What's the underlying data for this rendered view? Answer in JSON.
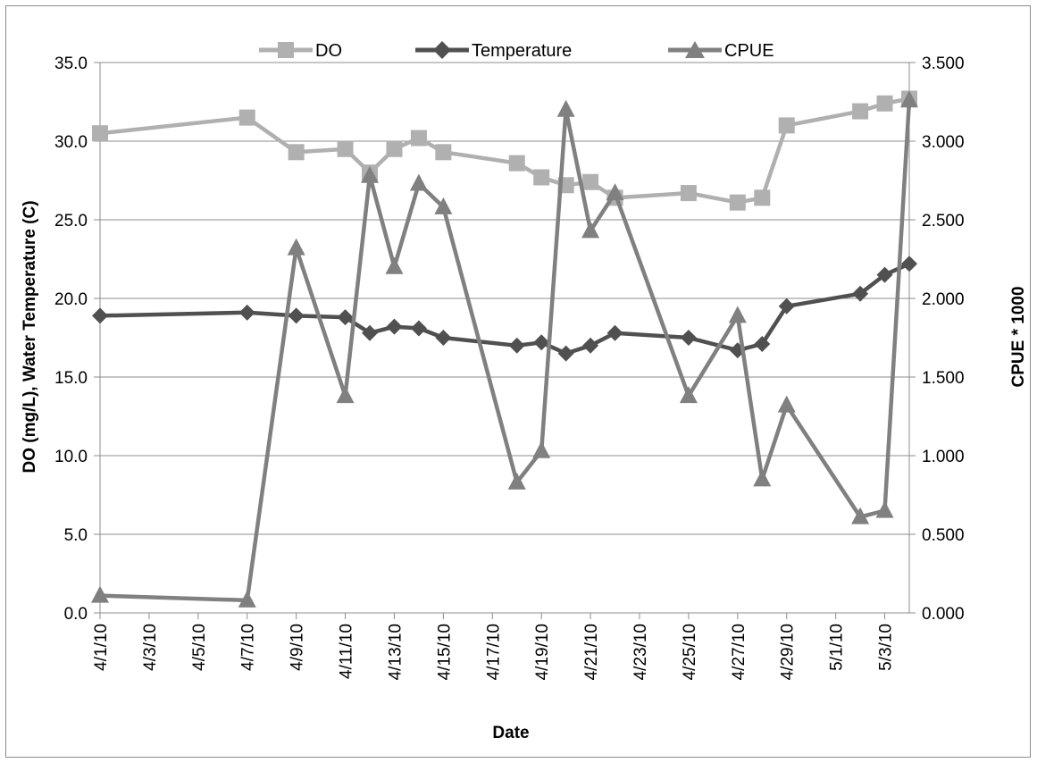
{
  "chart_data": {
    "type": "line",
    "title": "",
    "xlabel": "Date",
    "ylabel_left": "DO (mg/L), Water Temperature (C)",
    "ylabel_right": "CPUE * 1000",
    "x_ticks": [
      "4/1/10",
      "4/3/10",
      "4/5/10",
      "4/7/10",
      "4/9/10",
      "4/11/10",
      "4/13/10",
      "4/15/10",
      "4/17/10",
      "4/19/10",
      "4/21/10",
      "4/23/10",
      "4/25/10",
      "4/27/10",
      "4/29/10",
      "5/1/10",
      "5/3/10"
    ],
    "y_left_ticks": [
      "0.0",
      "5.0",
      "10.0",
      "15.0",
      "20.0",
      "25.0",
      "30.0",
      "35.0"
    ],
    "y_right_ticks": [
      "0.000",
      "0.500",
      "1.000",
      "1.500",
      "2.000",
      "2.500",
      "3.000",
      "3.500"
    ],
    "ylim_left": [
      0,
      35
    ],
    "ylim_right": [
      0,
      3.5
    ],
    "xlim": [
      "2010-04-01",
      "2010-05-04"
    ],
    "grid": "horizontal",
    "legend_position": "top",
    "series": [
      {
        "name": "DO",
        "axis": "left",
        "marker": "square",
        "color": "#b0b0b0",
        "x": [
          "2010-04-01",
          "2010-04-07",
          "2010-04-09",
          "2010-04-11",
          "2010-04-12",
          "2010-04-13",
          "2010-04-14",
          "2010-04-15",
          "2010-04-18",
          "2010-04-19",
          "2010-04-20",
          "2010-04-21",
          "2010-04-22",
          "2010-04-25",
          "2010-04-27",
          "2010-04-28",
          "2010-04-29",
          "2010-05-02",
          "2010-05-03",
          "2010-05-04"
        ],
        "y": [
          30.5,
          31.5,
          29.3,
          29.5,
          28.0,
          29.5,
          30.2,
          29.3,
          28.6,
          27.7,
          27.2,
          27.4,
          26.4,
          26.7,
          26.1,
          26.4,
          31.0,
          31.9,
          32.4,
          32.7
        ]
      },
      {
        "name": "Temperature",
        "axis": "left",
        "marker": "diamond",
        "color": "#505050",
        "x": [
          "2010-04-01",
          "2010-04-07",
          "2010-04-09",
          "2010-04-11",
          "2010-04-12",
          "2010-04-13",
          "2010-04-14",
          "2010-04-15",
          "2010-04-18",
          "2010-04-19",
          "2010-04-20",
          "2010-04-21",
          "2010-04-22",
          "2010-04-25",
          "2010-04-27",
          "2010-04-28",
          "2010-04-29",
          "2010-05-02",
          "2010-05-03",
          "2010-05-04"
        ],
        "y": [
          18.9,
          19.1,
          18.9,
          18.8,
          17.8,
          18.2,
          18.1,
          17.5,
          17.0,
          17.2,
          16.5,
          17.0,
          17.8,
          17.5,
          16.7,
          17.1,
          19.5,
          20.3,
          21.5,
          22.2
        ]
      },
      {
        "name": "CPUE",
        "axis": "right",
        "marker": "triangle",
        "color": "#808080",
        "x": [
          "2010-04-01",
          "2010-04-07",
          "2010-04-09",
          "2010-04-11",
          "2010-04-12",
          "2010-04-13",
          "2010-04-14",
          "2010-04-15",
          "2010-04-18",
          "2010-04-19",
          "2010-04-20",
          "2010-04-21",
          "2010-04-22",
          "2010-04-25",
          "2010-04-27",
          "2010-04-28",
          "2010-04-29",
          "2010-05-02",
          "2010-05-03",
          "2010-05-04"
        ],
        "y": [
          0.11,
          0.08,
          2.32,
          1.38,
          2.78,
          2.2,
          2.73,
          2.58,
          0.83,
          1.03,
          3.2,
          2.43,
          2.67,
          1.38,
          1.89,
          0.85,
          1.32,
          0.61,
          0.65,
          3.26
        ]
      }
    ]
  }
}
